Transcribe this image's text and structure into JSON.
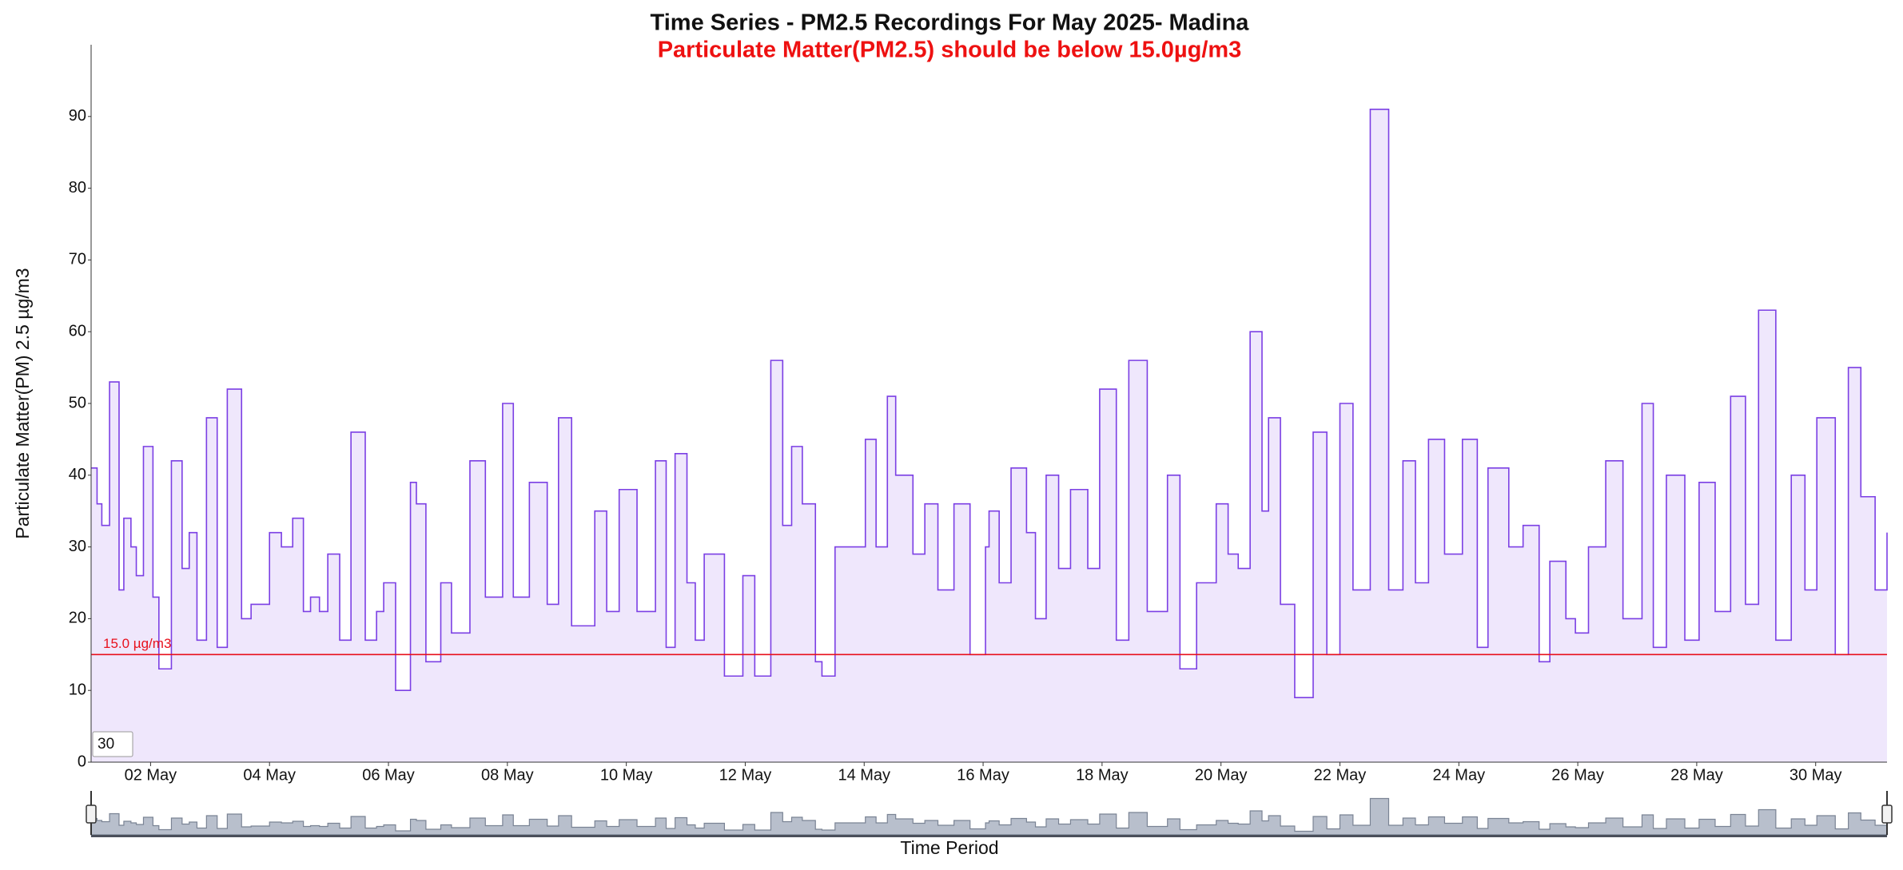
{
  "chart_data": {
    "type": "line",
    "step": true,
    "title": "Time Series - PM2.5 Recordings For May 2025- Madina",
    "subtitle": "Particulate Matter(PM2.5) should be below 15.0µg/m3",
    "x_label": "Time Period",
    "y_label": "Particulate Matter(PM) 2.5 µg/m3",
    "color": "#7b3fe4",
    "fill": "#efe7fc",
    "x": [
      1.0,
      1.1,
      1.18,
      1.31,
      1.47,
      1.55,
      1.67,
      1.76,
      1.88,
      2.04,
      2.14,
      2.35,
      2.53,
      2.65,
      2.78,
      2.94,
      3.12,
      3.29,
      3.53,
      3.69,
      4.0,
      4.2,
      4.39,
      4.57,
      4.69,
      4.84,
      4.98,
      5.18,
      5.37,
      5.61,
      5.8,
      5.92,
      6.12,
      6.37,
      6.47,
      6.63,
      6.88,
      7.06,
      7.37,
      7.63,
      7.92,
      8.1,
      8.37,
      8.67,
      8.86,
      9.08,
      9.27,
      9.47,
      9.67,
      9.88,
      10.18,
      10.49,
      10.67,
      10.82,
      11.02,
      11.16,
      11.31,
      11.65,
      11.96,
      12.16,
      12.43,
      12.63,
      12.78,
      12.96,
      13.18,
      13.29,
      13.51,
      14.02,
      14.2,
      14.39,
      14.53,
      14.82,
      15.02,
      15.24,
      15.51,
      15.78,
      16.04,
      16.1,
      16.27,
      16.47,
      16.73,
      16.88,
      17.06,
      17.27,
      17.47,
      17.76,
      17.96,
      18.24,
      18.45,
      18.76,
      19.1,
      19.31,
      19.59,
      19.92,
      20.12,
      20.29,
      20.49,
      20.69,
      20.8,
      21.0,
      21.24,
      21.55,
      21.78,
      22.0,
      22.22,
      22.51,
      22.82,
      23.06,
      23.27,
      23.49,
      23.76,
      24.06,
      24.31,
      24.49,
      24.84,
      25.08,
      25.35,
      25.53,
      25.8,
      25.96,
      26.18,
      26.47,
      26.76,
      27.08,
      27.27,
      27.49,
      27.8,
      28.04,
      28.31,
      28.57,
      28.82,
      29.04,
      29.33,
      29.59,
      29.82,
      30.02,
      30.33,
      30.55,
      30.76,
      31.0,
      31.2
    ],
    "values": [
      41,
      36,
      33,
      53,
      24,
      34,
      30,
      26,
      44,
      23,
      13,
      42,
      27,
      32,
      17,
      48,
      16,
      52,
      20,
      22,
      32,
      30,
      34,
      21,
      23,
      21,
      29,
      17,
      46,
      17,
      21,
      25,
      10,
      39,
      36,
      14,
      25,
      18,
      42,
      23,
      50,
      23,
      39,
      22,
      48,
      19,
      19,
      35,
      21,
      38,
      21,
      42,
      16,
      43,
      25,
      17,
      29,
      12,
      26,
      12,
      56,
      33,
      44,
      36,
      14,
      12,
      30,
      45,
      30,
      51,
      40,
      29,
      36,
      24,
      36,
      15,
      30,
      35,
      25,
      41,
      32,
      20,
      40,
      27,
      38,
      27,
      52,
      17,
      56,
      21,
      40,
      13,
      25,
      36,
      29,
      27,
      60,
      35,
      48,
      22,
      9,
      46,
      15,
      50,
      24,
      91,
      24,
      42,
      25,
      45,
      29,
      45,
      16,
      41,
      30,
      33,
      14,
      28,
      20,
      18,
      30,
      42,
      20,
      50,
      16,
      40,
      17,
      39,
      21,
      51,
      22,
      63,
      17,
      40,
      24,
      48,
      15,
      55,
      37,
      24,
      32
    ],
    "xlim": [
      1,
      31.2
    ],
    "xticks": [
      {
        "value": 2,
        "label": "02 May"
      },
      {
        "value": 4,
        "label": "04 May"
      },
      {
        "value": 6,
        "label": "06 May"
      },
      {
        "value": 8,
        "label": "08 May"
      },
      {
        "value": 10,
        "label": "10 May"
      },
      {
        "value": 12,
        "label": "12 May"
      },
      {
        "value": 14,
        "label": "14 May"
      },
      {
        "value": 16,
        "label": "16 May"
      },
      {
        "value": 18,
        "label": "18 May"
      },
      {
        "value": 20,
        "label": "20 May"
      },
      {
        "value": 22,
        "label": "22 May"
      },
      {
        "value": 24,
        "label": "24 May"
      },
      {
        "value": 26,
        "label": "26 May"
      },
      {
        "value": 28,
        "label": "28 May"
      },
      {
        "value": 30,
        "label": "30 May"
      }
    ],
    "ylim": [
      0,
      100
    ],
    "yticks": [
      0,
      10,
      20,
      30,
      40,
      50,
      60,
      70,
      80,
      90
    ],
    "threshold": {
      "value": 15,
      "label": "15.0 µg/m3",
      "color": "#e8101c"
    },
    "window_input": "30",
    "grid": false
  }
}
